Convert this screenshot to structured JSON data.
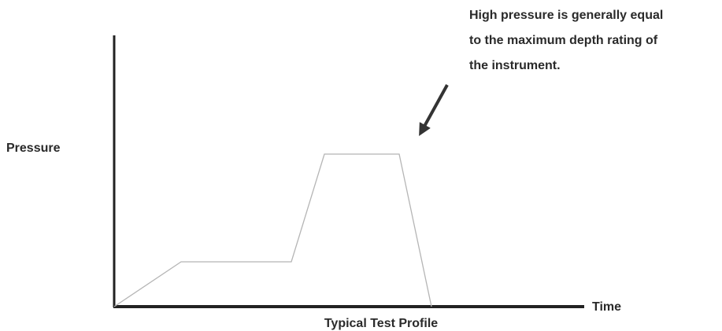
{
  "axes": {
    "y_label": "Pressure",
    "x_label": "Time"
  },
  "title": "Typical Test Profile",
  "annotation": {
    "lines": [
      "High pressure is generally equal",
      "to the maximum depth rating of",
      "the instrument."
    ]
  }
}
